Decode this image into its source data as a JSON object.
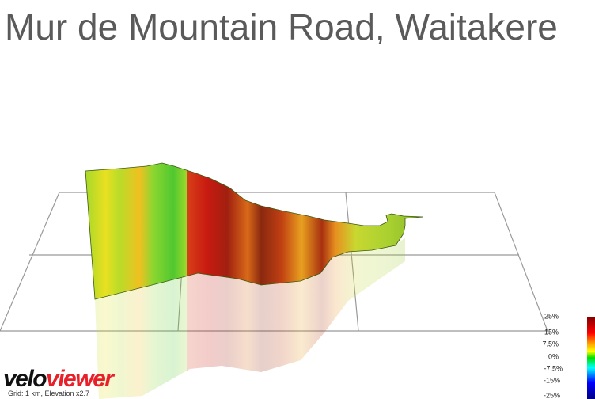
{
  "header": {
    "title": "Mur de Mountain Road, Waitakere"
  },
  "logo": [
    "velo",
    "viewer"
  ],
  "caption": "Grid: 1 km, Elevation x2.7",
  "legend": {
    "labels": [
      "25%",
      "15%",
      "7.5%",
      "0%",
      "-7.5%",
      "-15%",
      "-25%"
    ]
  }
}
